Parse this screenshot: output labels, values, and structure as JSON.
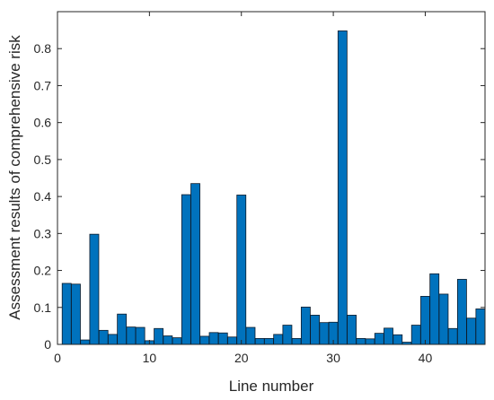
{
  "chart_data": {
    "type": "bar",
    "title": "",
    "xlabel": "Line number",
    "ylabel": "Assessment results of comprehensive risk",
    "xlim": [
      0,
      46.5
    ],
    "ylim": [
      0,
      0.9
    ],
    "xticks": [
      0,
      10,
      20,
      30,
      40
    ],
    "yticks": [
      0,
      0.1,
      0.2,
      0.3,
      0.4,
      0.5,
      0.6,
      0.7,
      0.8
    ],
    "xtick_labels": [
      "0",
      "10",
      "20",
      "30",
      "40"
    ],
    "ytick_labels": [
      "0",
      "0.1",
      "0.2",
      "0.3",
      "0.4",
      "0.5",
      "0.6",
      "0.7",
      "0.8"
    ],
    "grid": false,
    "bar_color": "#0072BD",
    "x": [
      1,
      2,
      3,
      4,
      5,
      6,
      7,
      8,
      9,
      10,
      11,
      12,
      13,
      14,
      15,
      16,
      17,
      18,
      19,
      20,
      21,
      22,
      23,
      24,
      25,
      26,
      27,
      28,
      29,
      30,
      31,
      32,
      33,
      34,
      35,
      36,
      37,
      38,
      39,
      40,
      41,
      42,
      43,
      44,
      45,
      46
    ],
    "values": [
      0.165,
      0.163,
      0.012,
      0.298,
      0.038,
      0.027,
      0.082,
      0.047,
      0.046,
      0.01,
      0.043,
      0.023,
      0.018,
      0.405,
      0.435,
      0.022,
      0.032,
      0.031,
      0.02,
      0.404,
      0.046,
      0.016,
      0.016,
      0.027,
      0.052,
      0.016,
      0.101,
      0.079,
      0.059,
      0.06,
      0.848,
      0.079,
      0.016,
      0.015,
      0.03,
      0.044,
      0.026,
      0.006,
      0.052,
      0.13,
      0.191,
      0.136,
      0.043,
      0.176,
      0.071,
      0.096
    ]
  }
}
